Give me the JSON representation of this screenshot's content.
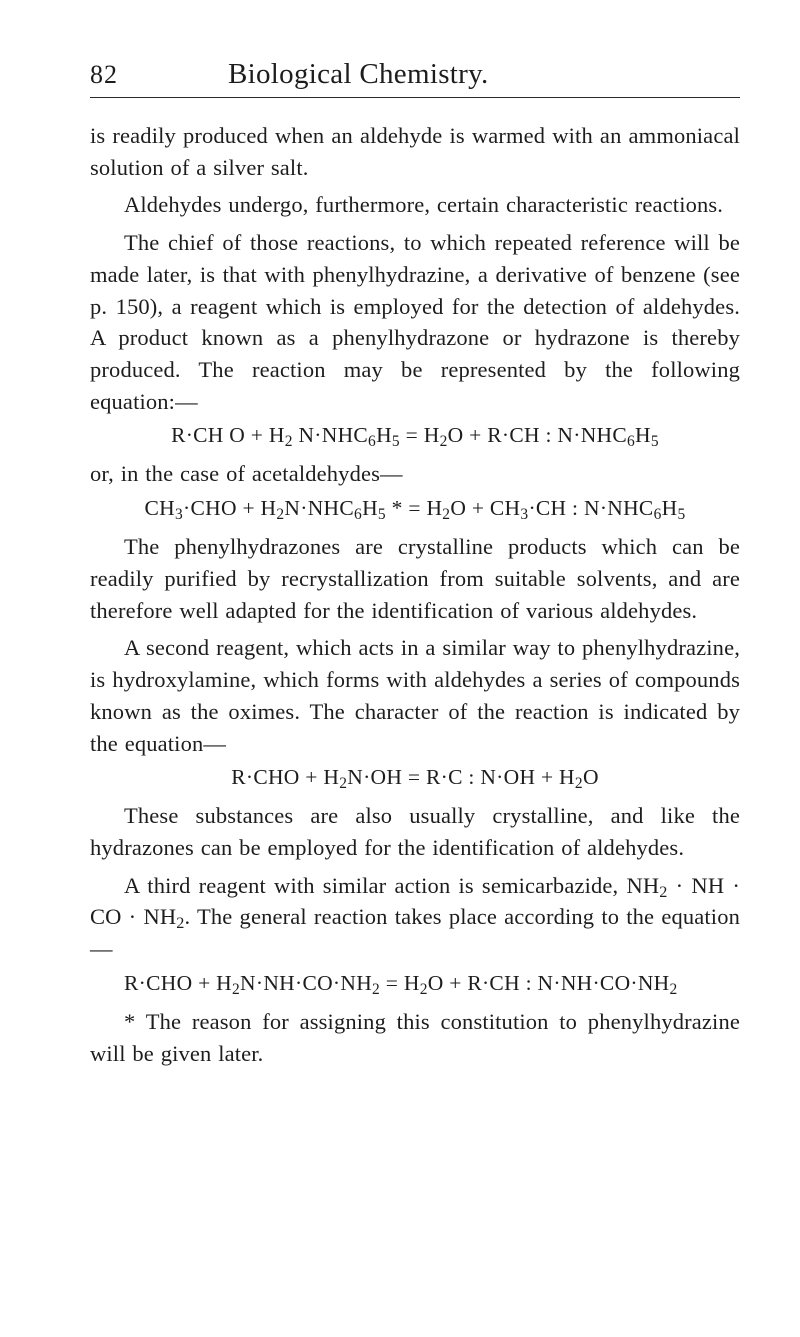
{
  "header": {
    "page_number": "82",
    "title": "Biological Chemistry."
  },
  "paragraphs": {
    "p1": "is readily produced when an aldehyde is warmed with an ammoniacal solution of a silver salt.",
    "p2": "Aldehydes undergo, furthermore, certain characteristic reactions.",
    "p3": "The chief of those reactions, to which repeated reference will be made later, is that with phenylhydrazine, a deriva­tive of benzene (see p. 150), a reagent which is employed for the detection of aldehydes. A product known as a phenylhydrazone or hydrazone is thereby produced. The reaction may be represented by the following equation:—",
    "p4": "or, in the case of acetaldehydes—",
    "p5": "The phenylhydrazones are crystalline products which can be readily purified by recrystallization from suitable solvents, and are therefore well adapted for the identifica­tion of various aldehydes.",
    "p6": "A second reagent, which acts in a similar way to phenylhydrazine, is hydroxylamine, which forms with aldehydes a series of compounds known as the oximes. The character of the reaction is indicated by the equation—",
    "p7": "These substances are also usually crystalline, and like the hydrazones can be employed for the identification of aldehydes.",
    "p8_part1": "A third reagent with similar action is semicarbazide, ",
    "p8_part2": " The general reaction takes place according to the equation—"
  },
  "equations": {
    "eq1": "R·CH O + H₂ N·NHC₆H₅ = H₂O + R·CH : N·NHC₆H₅",
    "eq2": "CH₃·CHO + H₂N·NHC₆H₅ * = H₂O + CH₃·CH : N·NHC₆H₅",
    "eq3": "R·CHO + H₂N·OH = R·C : N·OH + H₂O",
    "inline_semicarbazide": "NH₂ · NH · CO · NH₂.",
    "eq4": "R·CHO + H₂N·NH·CO·NH₂ = H₂O + R·CH : N·NH·CO·NH₂"
  },
  "footnote": "* The reason for assigning this constitution to phenylhydrazine will be given later."
}
